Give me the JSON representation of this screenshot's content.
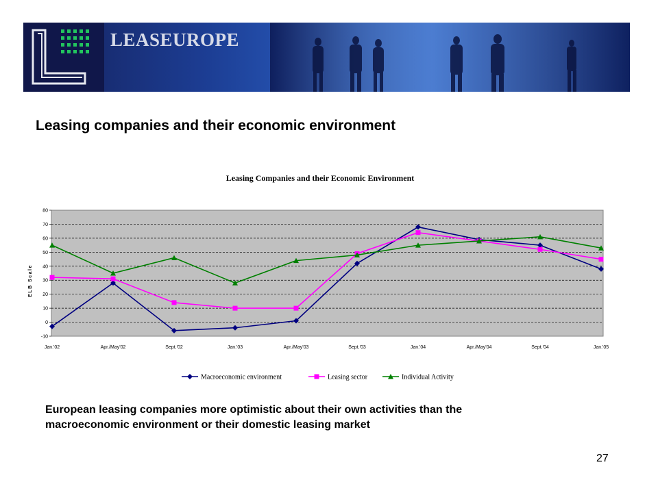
{
  "banner": {
    "brand": "LEASEUROPE",
    "colors": {
      "background": "#1c3d93",
      "logo_box": "#10174a",
      "logo_dots": "#22c55e"
    }
  },
  "slide": {
    "title": "Leasing companies and their economic environment",
    "caption_line1": "European leasing companies more optimistic about their own activities than the",
    "caption_line2": "macroeconomic environment or their domestic leasing market",
    "page_number": "27"
  },
  "chart_data": {
    "type": "line",
    "title": "Leasing Companies and their Economic Environment",
    "ylabel": "ELB Scale",
    "xlabel": "",
    "categories": [
      "Jan.'02",
      "Apr./May'02",
      "Sept.'02",
      "Jan.'03",
      "Apr./May'03",
      "Sept.'03",
      "Jan.'04",
      "Apr./May'04",
      "Sept.'04",
      "Jan.'05"
    ],
    "ylim": [
      -10,
      80
    ],
    "yticks": [
      "-10",
      "0",
      "10",
      "20",
      "30",
      "40",
      "50",
      "60",
      "70",
      "80"
    ],
    "grid": true,
    "plot_background": "#c0c0c0",
    "legend_position": "bottom",
    "series": [
      {
        "name": "Macroeconomic environment",
        "color": "#000080",
        "marker": "diamond",
        "values": [
          -3,
          28,
          -6,
          -4,
          1,
          42,
          68,
          59,
          55,
          38
        ]
      },
      {
        "name": "Leasing sector",
        "color": "#ff00ff",
        "marker": "square",
        "values": [
          32,
          31,
          14,
          10,
          10,
          49,
          64,
          58,
          52,
          45
        ]
      },
      {
        "name": "Individual Activity",
        "color": "#008000",
        "marker": "triangle",
        "values": [
          55,
          35,
          46,
          28,
          44,
          48,
          55,
          58,
          61,
          53
        ]
      }
    ]
  }
}
